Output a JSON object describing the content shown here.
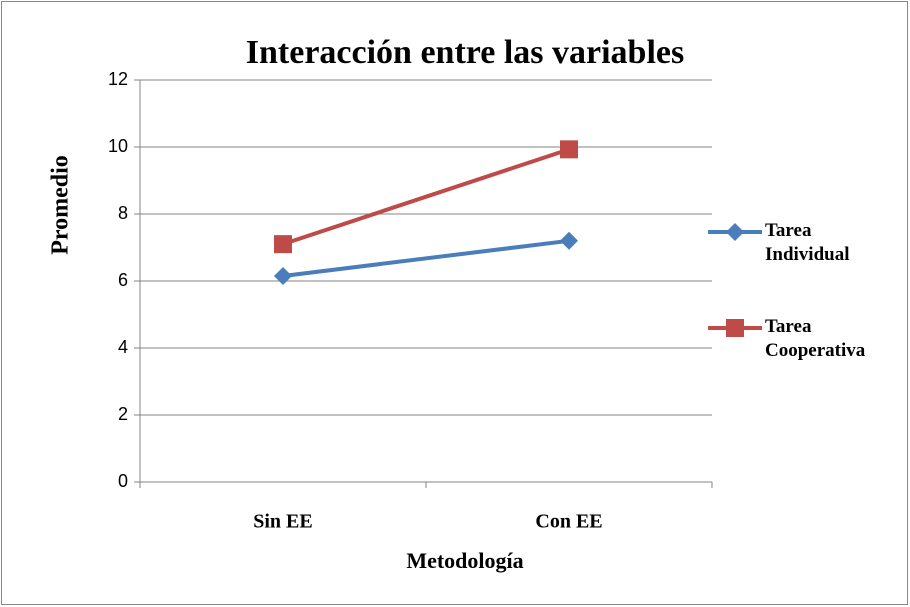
{
  "chart_data": {
    "type": "line",
    "title": "Interacción entre las variables",
    "x_label": "Metodología",
    "y_label": "Promedio",
    "categories": [
      "Sin EE",
      "Con EE"
    ],
    "series": [
      {
        "name": "Tarea Individual",
        "color": "#4a7ebb",
        "marker": "diamond",
        "values": [
          6.15,
          7.2
        ]
      },
      {
        "name": "Tarea Cooperativa",
        "color": "#be4b48",
        "marker": "square",
        "values": [
          7.1,
          9.93
        ]
      }
    ],
    "ylim": [
      0,
      12
    ],
    "yticks": [
      0,
      2,
      4,
      6,
      8,
      10,
      12
    ],
    "grid": true,
    "legend": "right"
  }
}
